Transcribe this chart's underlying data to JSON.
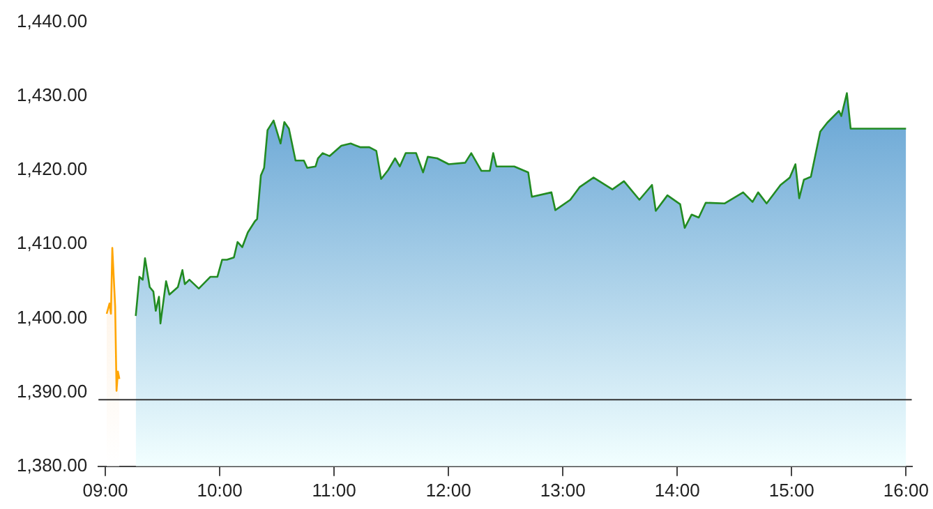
{
  "chart_data": {
    "type": "area",
    "xlim": [
      8.94,
      16.05
    ],
    "xticks": [
      {
        "value": 9,
        "label": "09:00"
      },
      {
        "value": 10,
        "label": "10:00"
      },
      {
        "value": 11,
        "label": "11:00"
      },
      {
        "value": 12,
        "label": "12:00"
      },
      {
        "value": 13,
        "label": "13:00"
      },
      {
        "value": 14,
        "label": "14:00"
      },
      {
        "value": 15,
        "label": "15:00"
      },
      {
        "value": 16,
        "label": "16:00"
      }
    ],
    "ylim": [
      1380,
      1440
    ],
    "yticks": [
      {
        "value": 1380,
        "label": "1,380.00"
      },
      {
        "value": 1390,
        "label": "1,390.00"
      },
      {
        "value": 1400,
        "label": "1,400.00"
      },
      {
        "value": 1410,
        "label": "1,410.00"
      },
      {
        "value": 1420,
        "label": "1,420.00"
      },
      {
        "value": 1430,
        "label": "1,430.00"
      },
      {
        "value": 1440,
        "label": "1,440.00"
      }
    ],
    "grid": false,
    "legend": false,
    "marker": "none",
    "line_style": "solid",
    "ref_lines": [
      {
        "axis": "y",
        "value": 1389,
        "color": "#333333"
      }
    ],
    "series": [
      {
        "color": "#ffa500",
        "x": [
          9.012,
          9.037,
          9.049,
          9.061,
          9.086,
          9.098,
          9.11,
          9.123
        ],
        "values": [
          1400.6,
          1402,
          1400.6,
          1409.5,
          1401.6,
          1390.2,
          1392.8,
          1391.8
        ]
      },
      {
        "color": "#228b22",
        "x": [
          9.266,
          9.298,
          9.327,
          9.347,
          9.388,
          9.42,
          9.441,
          9.469,
          9.482,
          9.531,
          9.56,
          9.634,
          9.674,
          9.695,
          9.735,
          9.817,
          9.919,
          9.98,
          10.021,
          10.063,
          10.124,
          10.156,
          10.197,
          10.246,
          10.308,
          10.327,
          10.36,
          10.388,
          10.418,
          10.471,
          10.532,
          10.565,
          10.605,
          10.663,
          10.736,
          10.765,
          10.838,
          10.859,
          10.9,
          10.961,
          11.063,
          11.145,
          11.227,
          11.308,
          11.369,
          11.411,
          11.472,
          11.533,
          11.574,
          11.626,
          11.717,
          11.778,
          11.819,
          11.901,
          12.002,
          12.146,
          12.199,
          12.288,
          12.361,
          12.391,
          12.419,
          12.575,
          12.697,
          12.729,
          12.9,
          12.934,
          13.065,
          13.146,
          13.268,
          13.433,
          13.534,
          13.669,
          13.779,
          13.812,
          13.914,
          14.025,
          14.065,
          14.126,
          14.188,
          14.249,
          14.413,
          14.576,
          14.658,
          14.707,
          14.781,
          14.903,
          14.984,
          15.033,
          15.066,
          15.107,
          15.168,
          15.25,
          15.311,
          15.413,
          15.434,
          15.483,
          15.516,
          16
        ],
        "values": [
          1400.3,
          1405.6,
          1405.2,
          1408.1,
          1404.2,
          1403.6,
          1401,
          1402.9,
          1399.3,
          1405,
          1403.2,
          1404.2,
          1406.5,
          1404.6,
          1405.2,
          1404,
          1405.6,
          1405.6,
          1407.9,
          1407.9,
          1408.2,
          1410.3,
          1409.6,
          1411.6,
          1413.1,
          1413.4,
          1419.3,
          1420.3,
          1425.4,
          1426.7,
          1423.6,
          1426.5,
          1425.6,
          1421.3,
          1421.3,
          1420.3,
          1420.5,
          1421.6,
          1422.3,
          1421.9,
          1423.3,
          1423.6,
          1423.1,
          1423.1,
          1422.6,
          1418.8,
          1420,
          1421.6,
          1420.5,
          1422.3,
          1422.3,
          1419.7,
          1421.8,
          1421.6,
          1420.8,
          1421,
          1422.3,
          1419.9,
          1419.9,
          1422.3,
          1420.5,
          1420.5,
          1419.7,
          1416.4,
          1417,
          1414.6,
          1416,
          1417.7,
          1419,
          1417.4,
          1418.5,
          1416,
          1418,
          1414.5,
          1416.6,
          1415.4,
          1412.2,
          1414,
          1413.6,
          1415.6,
          1415.5,
          1417,
          1415.7,
          1417,
          1415.5,
          1418,
          1419,
          1420.8,
          1416.2,
          1418.7,
          1419.1,
          1425.2,
          1426.4,
          1428,
          1427.3,
          1430.4,
          1425.6,
          1425.6
        ]
      }
    ]
  }
}
